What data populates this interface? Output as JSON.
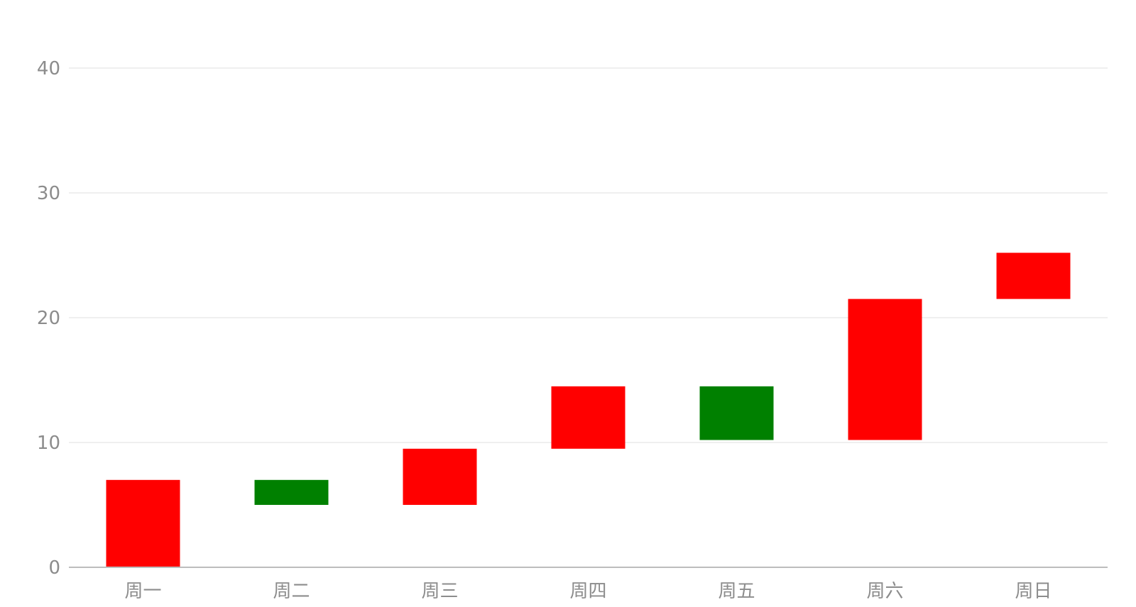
{
  "chart_data": {
    "type": "bar",
    "subtype": "waterfall",
    "title": "",
    "xlabel": "",
    "ylabel": "",
    "ylim": [
      0,
      40
    ],
    "yticks": [
      "0",
      "10",
      "20",
      "30",
      "40"
    ],
    "grid": true,
    "legend": "none",
    "categories": [
      "周一",
      "周二",
      "周三",
      "周四",
      "周五",
      "周六",
      "周日"
    ],
    "bars": [
      {
        "low": 0,
        "high": 7,
        "direction": "increase"
      },
      {
        "low": 5,
        "high": 7,
        "direction": "decrease"
      },
      {
        "low": 5,
        "high": 9.5,
        "direction": "increase"
      },
      {
        "low": 9.5,
        "high": 14.5,
        "direction": "increase"
      },
      {
        "low": 10.2,
        "high": 14.5,
        "direction": "decrease"
      },
      {
        "low": 10.2,
        "high": 21.5,
        "direction": "increase"
      },
      {
        "low": 21.5,
        "high": 25.2,
        "direction": "increase"
      }
    ],
    "colors": {
      "increase": "#ff0000",
      "decrease": "#008000"
    }
  }
}
